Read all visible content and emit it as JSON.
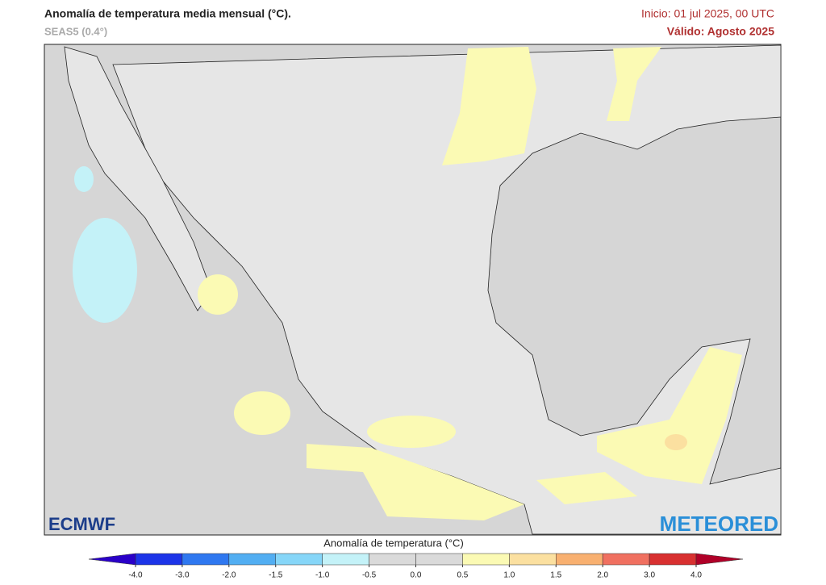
{
  "header": {
    "title": "Anomalía de temperatura media mensual (°C).",
    "subtitle": "SEAS5 (0.4°)",
    "init": "Inicio: 01 jul 2025, 00 UTC",
    "valid": "Válido: Agosto 2025"
  },
  "colorbar": {
    "title": "Anomalía de temperatura (°C)",
    "ticks": [
      {
        "value": -4,
        "label": "-4.0"
      },
      {
        "value": -3,
        "label": "-3.0"
      },
      {
        "value": -2,
        "label": "-2.0"
      },
      -1.5,
      {
        "value": -1,
        "label": "-1.0"
      },
      -0.5,
      {
        "value": 0,
        "label": "0.0"
      },
      0.5,
      {
        "value": 1,
        "label": "1.0"
      },
      1.5,
      {
        "value": 2,
        "label": "2.0"
      },
      {
        "value": 3,
        "label": "3.0"
      },
      {
        "value": 4,
        "label": "4.0"
      }
    ],
    "segment_colors": [
      "#1c34e8",
      "#2f78f0",
      "#52aef2",
      "#86d6f8",
      "#c4f2f8",
      "#dadada",
      "#dadada",
      "#fbfab4",
      "#fbe0a0",
      "#f8b070",
      "#f07060",
      "#d83030"
    ],
    "extend_colors": [
      "#2a00c8",
      "#b00028"
    ]
  },
  "logos": {
    "left": "ECMWF",
    "right": "METEORED"
  }
}
